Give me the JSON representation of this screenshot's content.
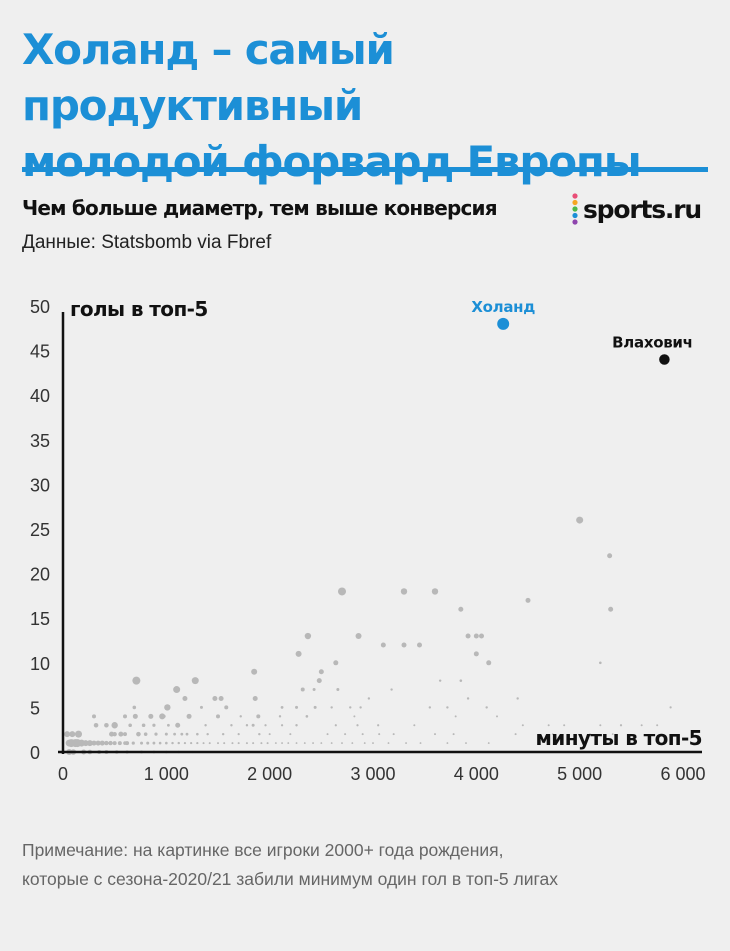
{
  "header": {
    "title_line1": "Холанд – самый продуктивный",
    "title_line2": "молодой форвард Европы",
    "subtitle": "Чем больше диаметр, тем выше конверсия",
    "source": "Данные: Statsbomb via Fbref",
    "logo_text": "sports.ru",
    "logo_dot_colors": [
      "#e94e77",
      "#f5a623",
      "#4cb849",
      "#1c8fd6",
      "#8e44ad"
    ]
  },
  "footnote": {
    "line1": "Примечание: на картинке все игроки 2000+ года рождения,",
    "line2": "которые с сезона-2020/21 забили минимум один гол в топ-5 лигах"
  },
  "colors": {
    "accent": "#1c8fd6",
    "highlight": "#1c8fd6",
    "dark": "#111111",
    "points": "#b8b8b8"
  },
  "chart_data": {
    "type": "scatter",
    "title": "",
    "xlabel": "минуты в топ-5",
    "ylabel": "голы в топ-5",
    "xlim": [
      0,
      6000
    ],
    "ylim": [
      0,
      50
    ],
    "x_ticks": [
      0,
      1000,
      2000,
      3000,
      4000,
      5000,
      6000
    ],
    "x_tick_labels": [
      "0",
      "1 000",
      "2 000",
      "3 000",
      "4 000",
      "5 000",
      "6 000"
    ],
    "y_ticks": [
      0,
      5,
      10,
      15,
      20,
      25,
      30,
      35,
      40,
      45,
      50
    ],
    "y_tick_labels": [
      "0",
      "5",
      "10",
      "15",
      "20",
      "25",
      "30",
      "35",
      "40",
      "45",
      "50"
    ],
    "size_encoding": "conversion",
    "highlighted": [
      {
        "label": "Холанд",
        "x": 4260,
        "y": 48,
        "size": 4,
        "color": "#1c8fd6"
      },
      {
        "label": "Влахович",
        "x": 5820,
        "y": 44,
        "size": 3.5,
        "color": "#111111"
      }
    ],
    "points": [
      [
        5000,
        26,
        3.5
      ],
      [
        5290,
        22,
        2.5
      ],
      [
        5300,
        16,
        2.5
      ],
      [
        4500,
        17,
        2.5
      ],
      [
        4350,
        0,
        0.9
      ],
      [
        3850,
        16,
        2.5
      ],
      [
        3600,
        18,
        3.2
      ],
      [
        3300,
        18,
        3.2
      ],
      [
        2700,
        18,
        4
      ],
      [
        3920,
        13,
        2.5
      ],
      [
        4000,
        13,
        2.5
      ],
      [
        4050,
        13,
        2.5
      ],
      [
        4000,
        11,
        2.5
      ],
      [
        4120,
        10,
        2.5
      ],
      [
        4100,
        5,
        1.2
      ],
      [
        3850,
        8,
        1.3
      ],
      [
        3920,
        6,
        1.2
      ],
      [
        4400,
        6,
        1.2
      ],
      [
        5200,
        10,
        1.3
      ],
      [
        5880,
        5,
        1.1
      ],
      [
        5400,
        3,
        1.1
      ],
      [
        5600,
        3,
        1
      ],
      [
        5750,
        3,
        1
      ],
      [
        5200,
        3,
        1
      ],
      [
        4700,
        3,
        1
      ],
      [
        4450,
        3,
        1
      ],
      [
        4850,
        3,
        1
      ],
      [
        3450,
        12,
        2.5
      ],
      [
        3300,
        12,
        2.5
      ],
      [
        3100,
        12,
        2.5
      ],
      [
        3650,
        8,
        1.2
      ],
      [
        3180,
        7,
        1.2
      ],
      [
        3550,
        5,
        1.2
      ],
      [
        3720,
        5,
        1.2
      ],
      [
        3800,
        4,
        1
      ],
      [
        3400,
        3,
        1
      ],
      [
        3200,
        2,
        1
      ],
      [
        3600,
        2,
        1
      ],
      [
        2860,
        13,
        3
      ],
      [
        2640,
        10,
        2.5
      ],
      [
        2960,
        6,
        1.2
      ],
      [
        2880,
        5,
        1.2
      ],
      [
        2780,
        5,
        1.2
      ],
      [
        2370,
        13,
        3.2
      ],
      [
        2280,
        11,
        3
      ],
      [
        2500,
        9,
        2.5
      ],
      [
        2480,
        8,
        2.5
      ],
      [
        2320,
        7,
        2
      ],
      [
        2430,
        7,
        1.5
      ],
      [
        2440,
        5,
        1.5
      ],
      [
        2260,
        5,
        1.5
      ],
      [
        2360,
        4,
        1.3
      ],
      [
        2260,
        3,
        1.2
      ],
      [
        1850,
        9,
        3
      ],
      [
        1860,
        6,
        2.5
      ],
      [
        1890,
        4,
        2
      ],
      [
        1840,
        3,
        1.5
      ],
      [
        1780,
        3,
        1.2
      ],
      [
        1900,
        2,
        1.2
      ],
      [
        1530,
        6,
        2.5
      ],
      [
        1580,
        5,
        2
      ],
      [
        1470,
        6,
        2.5
      ],
      [
        1500,
        4,
        2
      ],
      [
        1720,
        4,
        1.2
      ],
      [
        1630,
        3,
        1.2
      ],
      [
        1280,
        8,
        3.5
      ],
      [
        1180,
        6,
        2.5
      ],
      [
        1220,
        4,
        2.5
      ],
      [
        1100,
        7,
        3.5
      ],
      [
        1010,
        5,
        3.2
      ],
      [
        1110,
        3,
        2.5
      ],
      [
        960,
        4,
        3
      ],
      [
        850,
        4,
        2.5
      ],
      [
        700,
        4,
        2.5
      ],
      [
        650,
        3,
        1.8
      ],
      [
        730,
        2,
        2.3
      ],
      [
        690,
        5,
        1.8
      ],
      [
        710,
        8,
        4
      ],
      [
        500,
        3,
        3.2
      ],
      [
        470,
        2,
        2.5
      ],
      [
        560,
        2,
        2.5
      ],
      [
        620,
        1,
        2
      ],
      [
        420,
        3,
        2.3
      ],
      [
        320,
        3,
        2.3
      ],
      [
        120,
        1,
        4
      ],
      [
        140,
        1,
        4
      ],
      [
        80,
        1,
        4
      ],
      [
        60,
        1,
        3.5
      ],
      [
        180,
        1,
        3.5
      ],
      [
        220,
        1,
        3
      ],
      [
        260,
        1,
        3
      ],
      [
        300,
        1,
        2.5
      ],
      [
        340,
        1,
        2.5
      ],
      [
        380,
        1,
        2.5
      ],
      [
        420,
        1,
        2.2
      ],
      [
        460,
        1,
        2.2
      ],
      [
        500,
        1,
        2
      ],
      [
        550,
        1,
        2
      ],
      [
        600,
        1,
        1.8
      ],
      [
        680,
        1,
        1.6
      ],
      [
        760,
        1,
        1.5
      ],
      [
        820,
        1,
        1.5
      ],
      [
        880,
        1,
        1.4
      ],
      [
        940,
        1,
        1.3
      ],
      [
        1000,
        1,
        1.3
      ],
      [
        1060,
        1,
        1.2
      ],
      [
        1120,
        1,
        1.2
      ],
      [
        1180,
        1,
        1.1
      ],
      [
        1240,
        1,
        1.1
      ],
      [
        1300,
        1,
        1.1
      ],
      [
        1360,
        1,
        1
      ],
      [
        1420,
        1,
        1
      ],
      [
        1500,
        1,
        1
      ],
      [
        1560,
        1,
        1
      ],
      [
        1640,
        1,
        1
      ],
      [
        1700,
        1,
        1
      ],
      [
        1780,
        1,
        1
      ],
      [
        1840,
        1,
        1
      ],
      [
        1920,
        1,
        1
      ],
      [
        1980,
        1,
        1
      ],
      [
        2060,
        1,
        0.9
      ],
      [
        2120,
        1,
        0.9
      ],
      [
        2180,
        1,
        0.9
      ],
      [
        2260,
        1,
        0.9
      ],
      [
        2340,
        1,
        0.9
      ],
      [
        2420,
        1,
        0.9
      ],
      [
        2500,
        1,
        0.9
      ],
      [
        2600,
        1,
        0.9
      ],
      [
        2700,
        1,
        0.9
      ],
      [
        2800,
        1,
        0.9
      ],
      [
        2920,
        1,
        0.9
      ],
      [
        3000,
        1,
        0.9
      ],
      [
        3150,
        1,
        0.9
      ],
      [
        3320,
        1,
        0.9
      ],
      [
        3460,
        1,
        0.9
      ],
      [
        3720,
        1,
        0.9
      ],
      [
        3900,
        1,
        0.9
      ],
      [
        4120,
        1,
        0.9
      ],
      [
        200,
        0,
        2.5
      ],
      [
        260,
        0,
        2.3
      ],
      [
        350,
        0,
        2
      ],
      [
        420,
        0,
        2
      ],
      [
        520,
        0,
        1.8
      ],
      [
        620,
        0,
        1.6
      ],
      [
        760,
        0,
        1.5
      ],
      [
        880,
        0,
        1.4
      ],
      [
        1000,
        0,
        1.3
      ],
      [
        1120,
        0,
        1.2
      ],
      [
        1250,
        0,
        1.1
      ],
      [
        1380,
        0,
        1
      ],
      [
        1500,
        0,
        1
      ],
      [
        1650,
        0,
        1
      ],
      [
        1800,
        0,
        1
      ],
      [
        1950,
        0,
        0.9
      ],
      [
        2150,
        0,
        0.9
      ],
      [
        2300,
        0,
        0.9
      ],
      [
        2450,
        0,
        0.9
      ],
      [
        2620,
        0,
        0.9
      ],
      [
        2800,
        0,
        0.9
      ],
      [
        3000,
        0,
        0.9
      ],
      [
        3200,
        0,
        0.9
      ],
      [
        3500,
        0,
        0.9
      ],
      [
        3850,
        0,
        0.9
      ],
      [
        500,
        2,
        2.2
      ],
      [
        600,
        2,
        2
      ],
      [
        800,
        2,
        1.8
      ],
      [
        900,
        2,
        1.6
      ],
      [
        1000,
        2,
        1.5
      ],
      [
        1080,
        2,
        1.4
      ],
      [
        1150,
        2,
        1.4
      ],
      [
        1200,
        2,
        1.4
      ],
      [
        1300,
        2,
        1.3
      ],
      [
        1400,
        2,
        1.2
      ],
      [
        1550,
        2,
        1.2
      ],
      [
        1700,
        2,
        1.1
      ],
      [
        2000,
        2,
        1
      ],
      [
        2200,
        2,
        1
      ],
      [
        2560,
        2,
        1
      ],
      [
        2730,
        2,
        1
      ],
      [
        2900,
        2,
        1
      ],
      [
        3060,
        2,
        1
      ],
      [
        880,
        3,
        1.6
      ],
      [
        1020,
        3,
        1.4
      ],
      [
        1380,
        3,
        1.2
      ],
      [
        1960,
        3,
        1.1
      ],
      [
        2120,
        3,
        1.1
      ],
      [
        2640,
        3,
        1.1
      ],
      [
        2850,
        3,
        1.1
      ],
      [
        3050,
        3,
        1.1
      ],
      [
        3780,
        2,
        1
      ],
      [
        4380,
        2,
        1
      ],
      [
        300,
        4,
        2
      ],
      [
        600,
        4,
        2
      ],
      [
        780,
        3,
        1.8
      ],
      [
        980,
        4,
        1.4
      ],
      [
        1340,
        5,
        1.5
      ],
      [
        2120,
        5,
        1.4
      ],
      [
        2600,
        5,
        1.2
      ],
      [
        2660,
        7,
        1.5
      ],
      [
        2100,
        4,
        1.2
      ],
      [
        2820,
        4,
        1
      ],
      [
        4200,
        4,
        1
      ],
      [
        4740,
        2,
        0.9
      ],
      [
        4900,
        1,
        0.9
      ],
      [
        5100,
        2,
        0.9
      ],
      [
        5320,
        2,
        0.9
      ],
      [
        60,
        0,
        3
      ],
      [
        100,
        0,
        2.8
      ],
      [
        150,
        2,
        3.5
      ],
      [
        90,
        2,
        3
      ],
      [
        40,
        2,
        3
      ]
    ]
  }
}
